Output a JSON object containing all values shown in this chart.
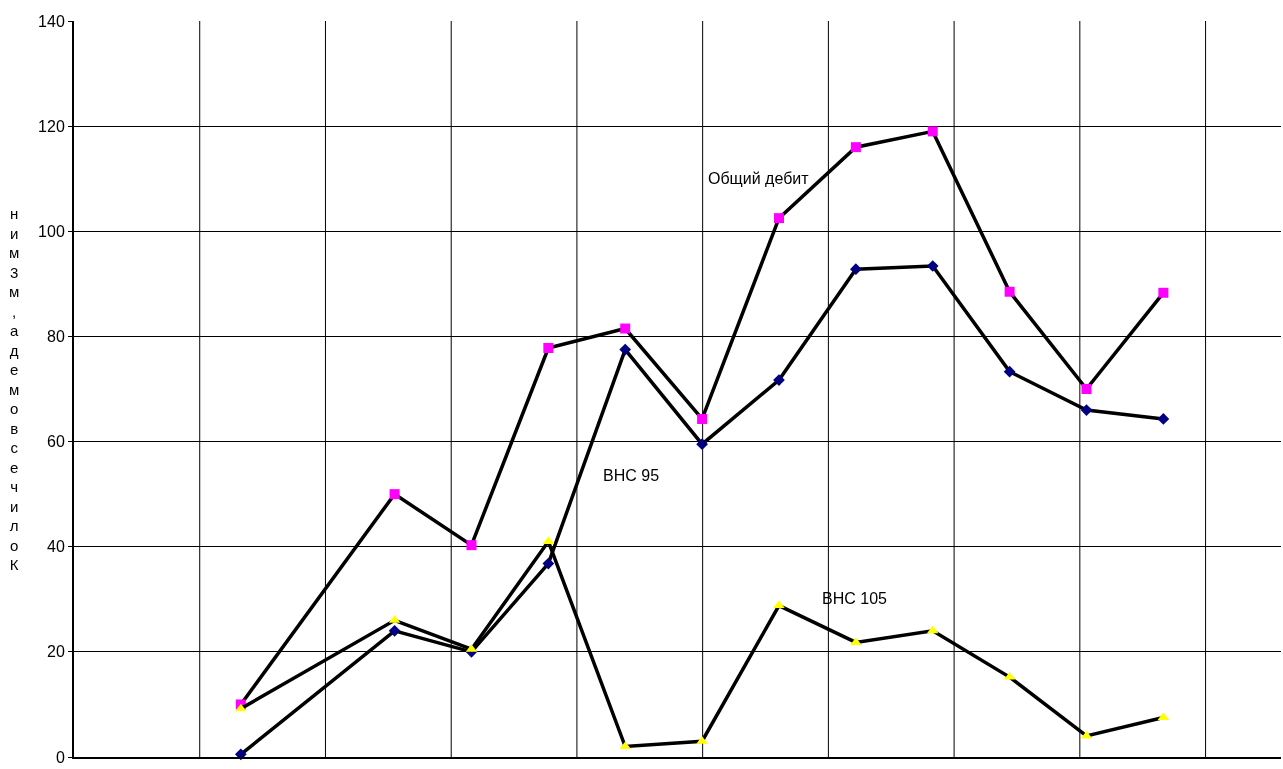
{
  "chart_data": {
    "type": "line",
    "ylabel": "ним3м,адемовсечилоК",
    "categories": [
      null,
      null,
      null,
      null,
      null,
      null,
      null,
      null,
      null,
      null,
      null,
      null,
      null
    ],
    "ylim": [
      0,
      140
    ],
    "yticks": [
      0,
      20,
      40,
      60,
      80,
      100,
      120,
      140
    ],
    "tick_labels": "y",
    "grid": true,
    "line_style": "solid",
    "series": [
      {
        "color": "#000000",
        "marker": "square",
        "colors": [
          "#ff00ff",
          "#ff00ff",
          "#ff00ff",
          "#ff00ff",
          "#ff00ff",
          "#ff00ff",
          "#ff00ff",
          "#ff00ff",
          "#ff00ff",
          "#ff00ff",
          "#ff00ff",
          "#ff00ff",
          "#ff00ff"
        ],
        "values": [
          10,
          null,
          50,
          40.3,
          77.8,
          81.5,
          64.3,
          102.5,
          116,
          119,
          88.5,
          70,
          88.3
        ]
      },
      {
        "color": "#000000",
        "marker": "diamond",
        "colors": [
          "#000080",
          "#000080",
          "#000080",
          "#000080",
          "#000080",
          "#000080",
          "#000080",
          "#000080",
          "#000080",
          "#000080",
          "#000080",
          "#000080",
          "#000080"
        ],
        "values": [
          0.5,
          null,
          24,
          20,
          36.8,
          77.5,
          59.5,
          71.7,
          92.8,
          93.4,
          73.3,
          66,
          64.3
        ]
      },
      {
        "color": "#000000",
        "marker": "triangle",
        "colors": [
          "#ffff00",
          "#ffff00",
          "#ffff00",
          "#ffff00",
          "#ffff00",
          "#ffff00",
          "#ffff00",
          "#ffff00",
          "#ffff00",
          "#ffff00",
          "#ffff00",
          "#ffff00",
          "#ffff00"
        ],
        "values": [
          9.2,
          null,
          26,
          20.5,
          41,
          2,
          3,
          28.8,
          21.8,
          24,
          15.2,
          4,
          7.5
        ]
      }
    ],
    "annotations": [
      "Общий дебит",
      "ВНС 95",
      "ВНС 105"
    ]
  }
}
